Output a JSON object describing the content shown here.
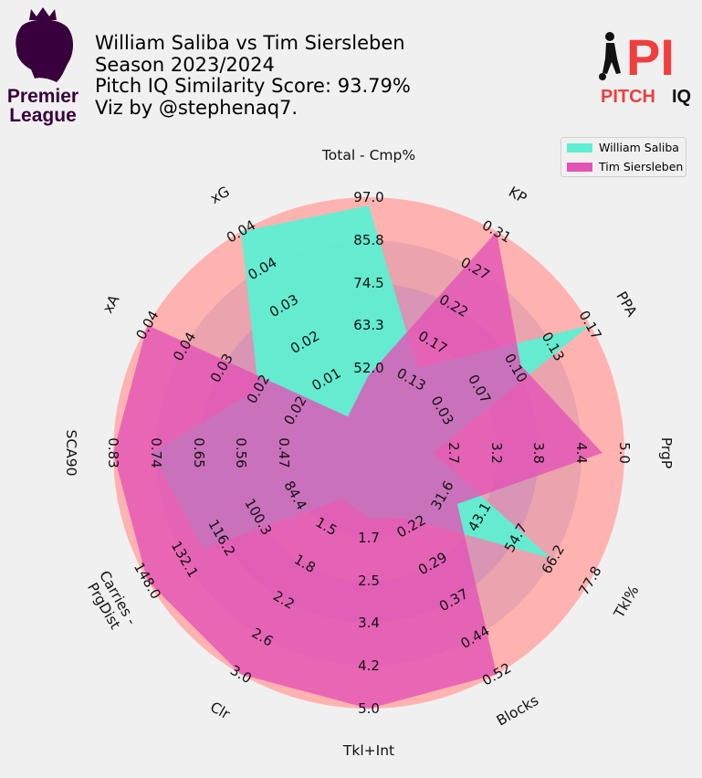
{
  "header": {
    "title_line1": "William Saliba vs Tim Siersleben",
    "title_line2": "Season 2023/2024",
    "title_line3": "Pitch IQ Similarity Score: 93.79%",
    "title_line4": "Viz by @stephenaq7."
  },
  "logos": {
    "league_line1": "Premier",
    "league_line2": "League",
    "brand_mark": "PI",
    "brand_text_1": "PITCH",
    "brand_text_2": "IQ"
  },
  "colors": {
    "background": "#f0f0f0",
    "ring_outer": "#ffb3b0",
    "ring_inner": "#eba3ad",
    "ring_mid": "#d895b4",
    "center": "#cc8fb8",
    "player1": "#5eefd2",
    "player2": "#e353b6",
    "league_purple": "#38003c",
    "brand_red": "#f03e3e"
  },
  "chart_data": {
    "type": "radar",
    "params": [
      "Total - Cmp%",
      "KP",
      "PPA",
      "PrgP",
      "Tkl%",
      "Blocks",
      "Tkl+Int",
      "Clr",
      "Carries - PrgDist",
      "SCA90",
      "xA",
      "xG"
    ],
    "min": [
      45.3,
      0.08,
      0.01,
      2.1,
      23.1,
      0.14,
      1.3,
      1.1,
      68.5,
      0.38,
      0.01,
      0.01
    ],
    "max": [
      97.0,
      0.31,
      0.17,
      5.0,
      77.8,
      0.52,
      5.0,
      3.0,
      148.0,
      0.83,
      0.04,
      0.04
    ],
    "tick_labels": [
      [
        "52.0",
        "63.3",
        "74.5",
        "85.8",
        "97.0"
      ],
      [
        "0.13",
        "0.17",
        "0.22",
        "0.27",
        "0.31"
      ],
      [
        "0.03",
        "0.07",
        "0.10",
        "0.13",
        "0.17"
      ],
      [
        "2.7",
        "3.2",
        "3.8",
        "4.4",
        "5.0"
      ],
      [
        "31.6",
        "43.1",
        "54.7",
        "66.2",
        "77.8"
      ],
      [
        "0.22",
        "0.29",
        "0.37",
        "0.44",
        "0.52"
      ],
      [
        "1.7",
        "2.5",
        "3.4",
        "4.2",
        "5.0"
      ],
      [
        "1.5",
        "1.8",
        "2.2",
        "2.6",
        "3.0"
      ],
      [
        "84.4",
        "100.3",
        "116.2",
        "132.1",
        "148.0"
      ],
      [
        "0.47",
        "0.56",
        "0.65",
        "0.74",
        "0.83"
      ],
      [
        "0.02",
        "0.02",
        "0.03",
        "0.04",
        "0.04"
      ],
      [
        "0.01",
        "0.02",
        "0.03",
        "0.04",
        "0.04"
      ]
    ],
    "series": [
      {
        "name": "William Saliba",
        "values": [
          95.0,
          0.14,
          0.17,
          2.4,
          66.2,
          0.2,
          1.7,
          1.2,
          124.0,
          0.75,
          0.022,
          0.042
        ]
      },
      {
        "name": "Tim Siersleben",
        "values": [
          54.0,
          0.31,
          0.11,
          4.7,
          38.5,
          0.52,
          5.0,
          3.0,
          148.0,
          0.83,
          0.04,
          0.0096
        ]
      }
    ],
    "legend_position": "top-right"
  }
}
